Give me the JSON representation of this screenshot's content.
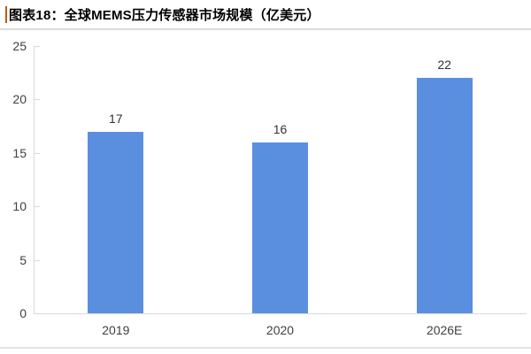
{
  "header": {
    "title": "图表18：全球MEMS压力传感器市场规模（亿美元）",
    "accent_color": "#C05A11"
  },
  "chart_data": {
    "type": "bar",
    "figure_label": "图表18",
    "title": "全球MEMS压力传感器市场规模（亿美元）",
    "categories": [
      "2019",
      "2020",
      "2026E"
    ],
    "values": [
      17,
      16,
      22
    ],
    "value_labels": [
      "17",
      "16",
      "22"
    ],
    "xlabel": "",
    "ylabel": "",
    "ylim": [
      0,
      25
    ],
    "yticks": [
      0,
      5,
      10,
      15,
      20,
      25
    ],
    "grid": false,
    "legend": false,
    "bar_color": "#5A8FE0",
    "axis_color": "#D9D9D9",
    "tick_label_color": "#404040",
    "value_label_color": "#333333",
    "title_color": "#000000"
  }
}
